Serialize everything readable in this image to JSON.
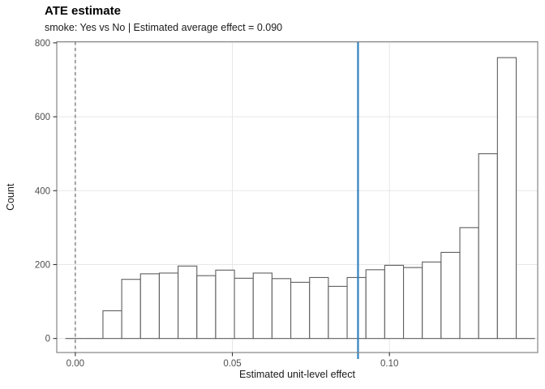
{
  "header": {
    "title": "ATE estimate",
    "subtitle": "smoke: Yes vs No | Estimated average effect = 0.090"
  },
  "chart_data": {
    "type": "bar",
    "subtype": "histogram",
    "title": "ATE estimate",
    "subtitle": "smoke: Yes vs No | Estimated average effect = 0.090",
    "xlabel": "Estimated unit-level effect",
    "ylabel": "Count",
    "estimated_average_effect": 0.09,
    "bins": {
      "start": -0.00316,
      "width": 0.00598
    },
    "counts": [
      0,
      0,
      75,
      160,
      175,
      177,
      196,
      170,
      185,
      163,
      177,
      162,
      152,
      165,
      141,
      165,
      186,
      198,
      192,
      207,
      233,
      300,
      500,
      760,
      0
    ],
    "x_ticks": [
      {
        "value": 0.0,
        "label": "0.00"
      },
      {
        "value": 0.05,
        "label": "0.05"
      },
      {
        "value": 0.1,
        "label": "0.10"
      }
    ],
    "y_ticks": [
      {
        "value": 0,
        "label": "0"
      },
      {
        "value": 200,
        "label": "200"
      },
      {
        "value": 400,
        "label": "400"
      },
      {
        "value": 600,
        "label": "600"
      },
      {
        "value": 800,
        "label": "800"
      }
    ],
    "xlim": [
      -0.0059,
      0.1472
    ],
    "ylim": [
      -38,
      803
    ],
    "grid": "major-only",
    "legend": false,
    "reference_lines": [
      {
        "name": "zero-reference-line",
        "x": 0.0,
        "style": "dashed",
        "color": "#6a6a6a",
        "width": 1.2
      },
      {
        "name": "ate-reference-line",
        "x": 0.09,
        "style": "solid",
        "color": "#3182bd",
        "width": 2.2
      }
    ],
    "colors": {
      "bar_fill": "#ffffff",
      "bar_stroke": "#5e5e5e",
      "grid": "#e7e7e7",
      "panel_border": "#858585",
      "tick": "#333333",
      "axis_text": "#4d4d4d",
      "text": "#1a1a1a",
      "accent_blue": "#3182bd",
      "dashed_gray": "#6a6a6a"
    }
  }
}
